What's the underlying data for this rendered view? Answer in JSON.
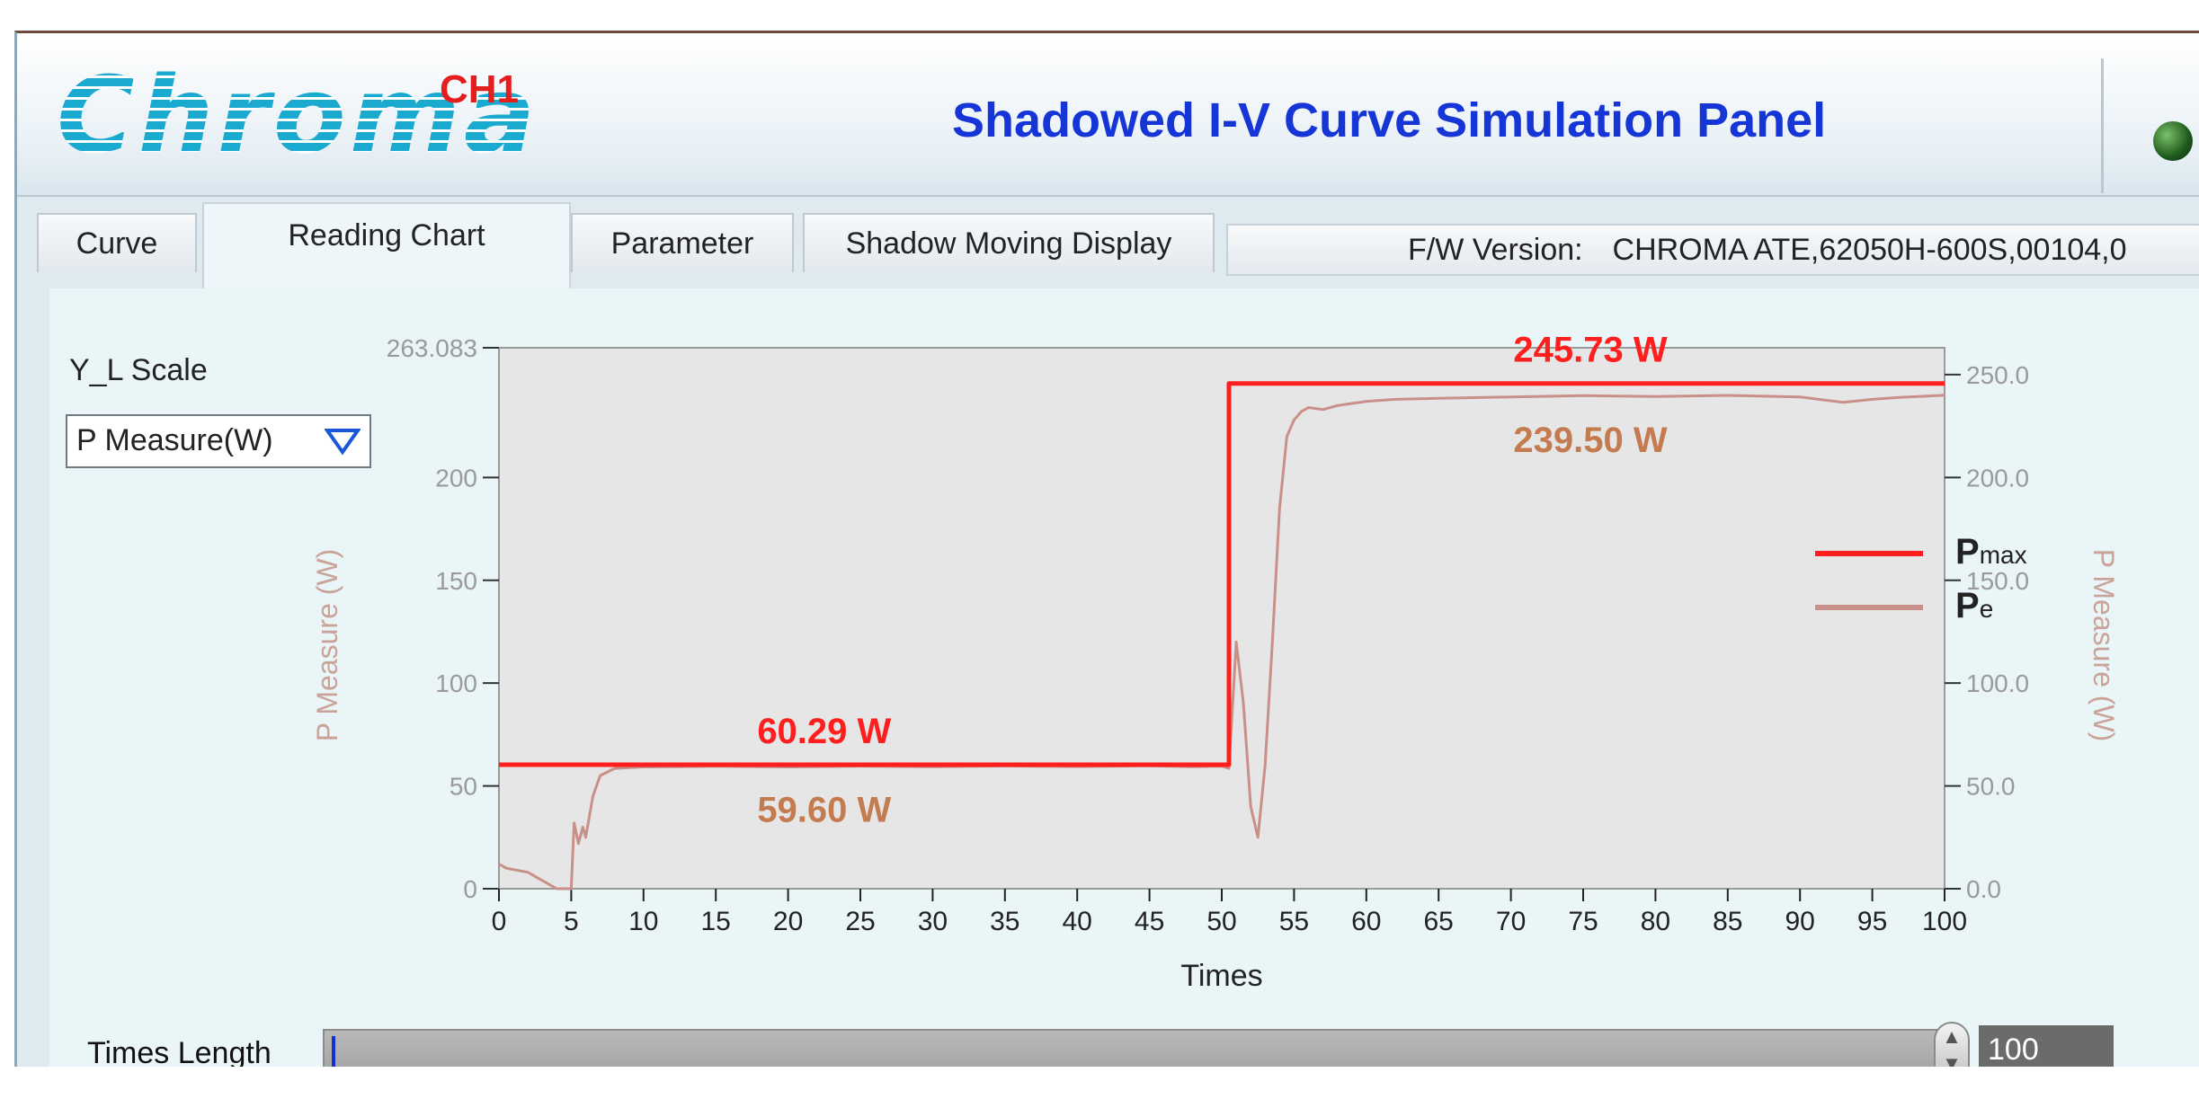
{
  "header": {
    "logo_text": "Chroma",
    "channel": "CH1",
    "title": "Shadowed I-V Curve Simulation Panel"
  },
  "tabs": [
    {
      "label": "Curve"
    },
    {
      "label": "Reading Chart"
    },
    {
      "label": "Parameter"
    },
    {
      "label": "Shadow Moving Display"
    }
  ],
  "active_tab": "Reading Chart",
  "firmware": {
    "label": "F/W Version:",
    "value": "CHROMA ATE,62050H-600S,00104,0"
  },
  "y_scale": {
    "label": "Y_L Scale",
    "selected": "P Measure(W)"
  },
  "times_length": {
    "label": "Times Length",
    "value": "100"
  },
  "colors": {
    "pmax": "#ff1e1e",
    "pe": "#c9908a",
    "annotation_pe": "#c47b50",
    "plot_bg": "#e6e6e6"
  },
  "chart_data": {
    "type": "line",
    "xlabel": "Times",
    "ylabel_left": "P Measure (W)",
    "ylabel_right": "P Measure (W)",
    "x_ticks": [
      "0",
      "5",
      "10",
      "15",
      "20",
      "25",
      "30",
      "35",
      "40",
      "45",
      "50",
      "55",
      "60",
      "65",
      "70",
      "75",
      "80",
      "85",
      "90",
      "95",
      "100"
    ],
    "y_left_ticks": [
      "0",
      "50",
      "100",
      "150",
      "200"
    ],
    "y_left_top": "263.083",
    "y_right_ticks": [
      "0.0",
      "50.0",
      "100.0",
      "150.0",
      "200.0",
      "250.0"
    ],
    "xlim": [
      0,
      100
    ],
    "ylim": [
      0,
      263.083
    ],
    "grid": false,
    "legend_position": "right",
    "legend": [
      {
        "main": "P",
        "sub": "max"
      },
      {
        "main": "P",
        "sub": "e"
      }
    ],
    "series": [
      {
        "name": "Pmax",
        "x": [
          0,
          50.5,
          50.5,
          100
        ],
        "y": [
          60.29,
          60.29,
          245.73,
          245.73
        ]
      },
      {
        "name": "Pe",
        "x": [
          0,
          0.5,
          2,
          2.5,
          4,
          5,
          5.2,
          5.5,
          5.8,
          6,
          6.5,
          7,
          8,
          10,
          15,
          20,
          25,
          30,
          35,
          40,
          45,
          48,
          50,
          50.5,
          51,
          51.5,
          52,
          52.5,
          53,
          53.5,
          54,
          54.5,
          55,
          55.5,
          56,
          57,
          58,
          59,
          60,
          62,
          65,
          70,
          75,
          80,
          85,
          90,
          93,
          95,
          97,
          100
        ],
        "y": [
          12,
          10,
          8,
          6,
          0,
          0,
          32,
          22,
          30,
          25,
          45,
          55,
          58.5,
          59.2,
          59.5,
          59.2,
          59.6,
          59.3,
          59.7,
          59.4,
          59.8,
          59.3,
          59.6,
          58.5,
          120,
          90,
          40,
          25,
          60,
          120,
          185,
          220,
          228,
          232,
          234,
          233,
          235,
          236,
          237,
          238,
          238.5,
          239.2,
          239.8,
          239.4,
          239.9,
          239.2,
          236.5,
          238,
          239,
          240
        ]
      }
    ],
    "annotations": [
      {
        "text": "60.29 W",
        "series": "Pmax",
        "x": 22.5,
        "y": 60.29
      },
      {
        "text": "59.60 W",
        "series": "Pe",
        "x": 22.5,
        "y": 59.6
      },
      {
        "text": "245.73 W",
        "series": "Pmax",
        "x": 75.5,
        "y": 245.73
      },
      {
        "text": "239.50 W",
        "series": "Pe",
        "x": 75.5,
        "y": 239.5
      }
    ]
  }
}
